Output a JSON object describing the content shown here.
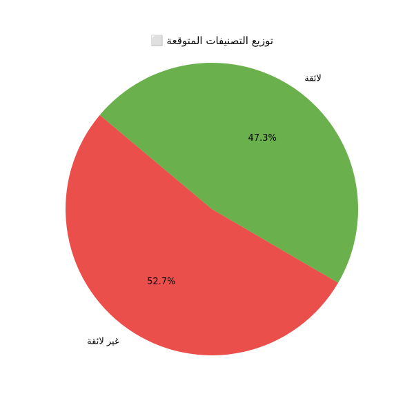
{
  "chart_data": {
    "type": "pie",
    "title": "⬜ توزيع التصنيفات المتوقعة",
    "slices": [
      {
        "label": "غير لائقة",
        "value": 52.7,
        "pct_label": "52.7%",
        "color": "#eb4f4b"
      },
      {
        "label": "لائقة",
        "value": 47.3,
        "pct_label": "47.3%",
        "color": "#6ab04c"
      }
    ],
    "start_angle_deg": 140,
    "direction": "counterclockwise"
  }
}
